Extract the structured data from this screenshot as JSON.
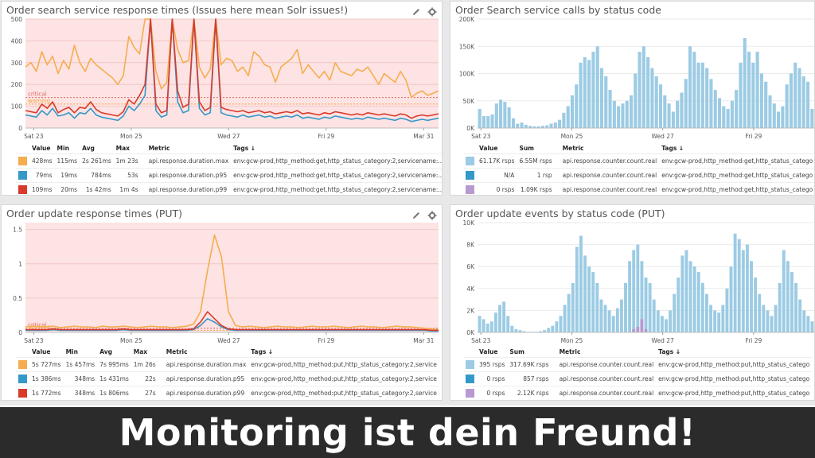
{
  "panels": [
    {
      "id": "p1",
      "title": "Order search service response times (Issues here mean Solr issues!)",
      "legend_headers": [
        "Value",
        "Min",
        "Avg",
        "Max",
        "Metric",
        "Tags ↓"
      ],
      "rows": [
        {
          "color": "#f5ad4f",
          "value": "428ms",
          "min": "115ms",
          "avg": "2s 261ms",
          "max": "1m 23s",
          "metric": "api.response.duration.max",
          "tags": "env:gcw-prod,http_method:get,http_status_category:2,servicename:..."
        },
        {
          "color": "#3498c8",
          "value": "79ms",
          "min": "19ms",
          "avg": "784ms",
          "max": "53s",
          "metric": "api.response.duration.p95",
          "tags": "env:gcw-prod,http_method:get,http_status_category:2,servicename:..."
        },
        {
          "color": "#d83a2c",
          "value": "109ms",
          "min": "20ms",
          "avg": "1s 42ms",
          "max": "1m 4s",
          "metric": "api.response.duration.p99",
          "tags": "env:gcw-prod,http_method:get,http_status_category:2,servicename:..."
        }
      ]
    },
    {
      "id": "p2",
      "title": "Order Search service calls by status code",
      "legend_headers": [
        "Value",
        "Sum",
        "Metric",
        "Tags ↓"
      ],
      "rows": [
        {
          "color": "#9ccbe4",
          "value": "61.17K rsps",
          "sum": "6.55M rsps",
          "metric": "api.response.counter.count.real",
          "tags": "env:gcw-prod,http_method:get,http_status_category:2,servicename:se"
        },
        {
          "color": "#3498c8",
          "value": "N/A",
          "sum": "1 rsp",
          "metric": "api.response.counter.count.real",
          "tags": "env:gcw-prod,http_method:get,http_status_category:4,servicename:se"
        },
        {
          "color": "#b79ad0",
          "value": "0 rsps",
          "sum": "1.09K rsps",
          "metric": "api.response.counter.count.real",
          "tags": "env:gcw-prod,http_method:get,http_status_category:5,servicename:se"
        }
      ]
    },
    {
      "id": "p3",
      "title": "Order update response times (PUT)",
      "legend_headers": [
        "Value",
        "Min",
        "Avg",
        "Max",
        "Metric",
        "Tags ↓"
      ],
      "rows": [
        {
          "color": "#f5ad4f",
          "value": "5s 727ms",
          "min": "1s 457ms",
          "avg": "7s 995ms",
          "max": "1m 26s",
          "metric": "api.response.duration.max",
          "tags": "env:gcw-prod,http_method:put,http_status_category:2,servicen..."
        },
        {
          "color": "#3498c8",
          "value": "1s 386ms",
          "min": "348ms",
          "avg": "1s 431ms",
          "max": "22s",
          "metric": "api.response.duration.p95",
          "tags": "env:gcw-prod,http_method:put,http_status_category:2,servicen..."
        },
        {
          "color": "#d83a2c",
          "value": "1s 772ms",
          "min": "348ms",
          "avg": "1s 806ms",
          "max": "27s",
          "metric": "api.response.duration.p99",
          "tags": "env:gcw-prod,http_method:put,http_status_category:2,servicen..."
        }
      ]
    },
    {
      "id": "p4",
      "title": "Order update events by status code (PUT)",
      "legend_headers": [
        "Value",
        "Sum",
        "Metric",
        "Tags ↓"
      ],
      "rows": [
        {
          "color": "#9ccbe4",
          "value": "395 rsps",
          "sum": "317.69K rsps",
          "metric": "api.response.counter.count.real",
          "tags": "env:gcw-prod,http_method:put,http_status_category:2,servicename:"
        },
        {
          "color": "#3498c8",
          "value": "0 rsps",
          "sum": "857 rsps",
          "metric": "api.response.counter.count.real",
          "tags": "env:gcw-prod,http_method:put,http_status_category:4,servicename:"
        },
        {
          "color": "#b79ad0",
          "value": "0 rsps",
          "sum": "2.12K rsps",
          "metric": "api.response.counter.count.real",
          "tags": "env:gcw-prod,http_method:put,http_status_category:5,servicename:"
        }
      ]
    }
  ],
  "icons": {
    "edit": "pencil-icon",
    "settings": "gear-icon"
  },
  "footer": {
    "text": "Monitoring ist dein Freund!"
  },
  "chart_data": [
    {
      "type": "line",
      "panel": "p1",
      "x_ticks": [
        "Sat 23",
        "Mon 25",
        "Wed 27",
        "Fri 29",
        "Mar 31"
      ],
      "y_ticks": [
        0,
        100,
        200,
        300,
        400,
        500
      ],
      "ylim": [
        0,
        500
      ],
      "thresholds": [
        {
          "label": "critical",
          "value": 140,
          "color": "#e06666"
        },
        {
          "label": "warning",
          "value": 110,
          "color": "#f5a742"
        }
      ],
      "series": [
        {
          "color": "#f5ad4f",
          "values": [
            280,
            300,
            260,
            350,
            290,
            330,
            250,
            310,
            270,
            380,
            300,
            260,
            320,
            290,
            270,
            250,
            230,
            200,
            240,
            420,
            370,
            340,
            500,
            500,
            260,
            180,
            210,
            500,
            360,
            300,
            310,
            500,
            280,
            230,
            270,
            500,
            290,
            320,
            310,
            260,
            280,
            240,
            350,
            330,
            290,
            280,
            210,
            280,
            300,
            320,
            360,
            250,
            290,
            260,
            230,
            260,
            220,
            300,
            260,
            250,
            240,
            270,
            260,
            280,
            240,
            200,
            250,
            230,
            210,
            260,
            220,
            140,
            160,
            170,
            150,
            160,
            170
          ]
        },
        {
          "color": "#3498c8",
          "values": [
            60,
            55,
            50,
            80,
            60,
            90,
            55,
            60,
            70,
            45,
            70,
            65,
            90,
            60,
            50,
            45,
            40,
            35,
            55,
            100,
            80,
            110,
            150,
            500,
            80,
            50,
            60,
            500,
            120,
            70,
            80,
            500,
            90,
            60,
            70,
            500,
            70,
            60,
            55,
            50,
            60,
            50,
            55,
            60,
            50,
            55,
            45,
            50,
            55,
            50,
            60,
            45,
            50,
            45,
            40,
            50,
            45,
            55,
            50,
            45,
            40,
            45,
            40,
            50,
            45,
            40,
            45,
            40,
            35,
            45,
            40,
            30,
            35,
            40,
            35,
            40,
            45
          ]
        },
        {
          "color": "#d83a2c",
          "values": [
            80,
            75,
            70,
            110,
            90,
            120,
            70,
            85,
            95,
            70,
            95,
            90,
            120,
            85,
            70,
            65,
            60,
            55,
            75,
            130,
            110,
            150,
            200,
            500,
            110,
            70,
            80,
            500,
            170,
            95,
            110,
            500,
            120,
            80,
            95,
            500,
            95,
            85,
            80,
            75,
            80,
            70,
            75,
            80,
            70,
            75,
            65,
            70,
            75,
            70,
            80,
            65,
            70,
            65,
            60,
            70,
            65,
            75,
            70,
            65,
            60,
            65,
            60,
            70,
            65,
            60,
            65,
            60,
            55,
            65,
            60,
            45,
            55,
            60,
            55,
            60,
            65
          ]
        }
      ]
    },
    {
      "type": "bar",
      "panel": "p2",
      "x_ticks": [
        "Sat 23",
        "Mon 25",
        "Wed 27",
        "Fri 29"
      ],
      "y_ticks": [
        "0K",
        "50K",
        "100K",
        "150K",
        "200K"
      ],
      "ylim": [
        0,
        200
      ],
      "unit": "K",
      "series": [
        {
          "color": "#9ccbe4",
          "values": [
            35,
            22,
            22,
            25,
            45,
            52,
            48,
            38,
            18,
            8,
            10,
            6,
            4,
            3,
            3,
            4,
            5,
            8,
            10,
            15,
            28,
            40,
            60,
            80,
            120,
            130,
            125,
            140,
            150,
            110,
            95,
            70,
            50,
            40,
            45,
            50,
            60,
            100,
            140,
            150,
            130,
            110,
            95,
            80,
            60,
            45,
            30,
            50,
            65,
            90,
            150,
            140,
            120,
            120,
            110,
            90,
            70,
            55,
            40,
            35,
            50,
            70,
            120,
            165,
            140,
            120,
            140,
            100,
            85,
            60,
            45,
            30,
            40,
            80,
            100,
            120,
            110,
            95,
            85,
            35
          ]
        },
        {
          "color": "#b79ad0",
          "values": []
        }
      ]
    },
    {
      "type": "line",
      "panel": "p3",
      "x_ticks": [
        "Sat 23",
        "Mon 25",
        "Wed 27",
        "Fri 29",
        "Mar 31"
      ],
      "y_ticks": [
        0,
        0.5,
        1,
        1.5
      ],
      "ylim": [
        0,
        1.6
      ],
      "thresholds": [
        {
          "label": "critical",
          "value": 0.06,
          "color": "#e06666"
        },
        {
          "label": "warning",
          "value": 0.03,
          "color": "#f5a742"
        }
      ],
      "series": [
        {
          "color": "#f5ad4f",
          "values": [
            0.08,
            0.09,
            0.08,
            0.08,
            0.09,
            0.07,
            0.08,
            0.09,
            0.08,
            0.08,
            0.07,
            0.09,
            0.08,
            0.08,
            0.09,
            0.08,
            0.07,
            0.08,
            0.09,
            0.08,
            0.08,
            0.07,
            0.08,
            0.09,
            0.12,
            0.3,
            0.9,
            1.42,
            1.1,
            0.3,
            0.1,
            0.08,
            0.09,
            0.08,
            0.07,
            0.08,
            0.09,
            0.08,
            0.08,
            0.07,
            0.08,
            0.09,
            0.08,
            0.08,
            0.09,
            0.08,
            0.07,
            0.08,
            0.09,
            0.08,
            0.08,
            0.07,
            0.08,
            0.09,
            0.08,
            0.08,
            0.07,
            0.06,
            0.05,
            0.04
          ]
        },
        {
          "color": "#3498c8",
          "values": [
            0.03,
            0.03,
            0.03,
            0.03,
            0.04,
            0.03,
            0.03,
            0.03,
            0.03,
            0.03,
            0.03,
            0.03,
            0.03,
            0.03,
            0.04,
            0.03,
            0.03,
            0.03,
            0.03,
            0.03,
            0.03,
            0.03,
            0.03,
            0.03,
            0.04,
            0.1,
            0.2,
            0.15,
            0.08,
            0.04,
            0.03,
            0.03,
            0.03,
            0.03,
            0.03,
            0.03,
            0.03,
            0.03,
            0.03,
            0.03,
            0.03,
            0.03,
            0.03,
            0.03,
            0.03,
            0.03,
            0.03,
            0.03,
            0.03,
            0.03,
            0.03,
            0.03,
            0.03,
            0.03,
            0.03,
            0.03,
            0.03,
            0.03,
            0.02,
            0.02
          ]
        },
        {
          "color": "#d83a2c",
          "values": [
            0.04,
            0.04,
            0.04,
            0.04,
            0.05,
            0.04,
            0.04,
            0.04,
            0.04,
            0.04,
            0.04,
            0.04,
            0.04,
            0.04,
            0.05,
            0.04,
            0.04,
            0.04,
            0.04,
            0.04,
            0.04,
            0.04,
            0.04,
            0.04,
            0.05,
            0.15,
            0.3,
            0.2,
            0.1,
            0.05,
            0.04,
            0.04,
            0.04,
            0.04,
            0.04,
            0.04,
            0.04,
            0.04,
            0.04,
            0.04,
            0.04,
            0.04,
            0.04,
            0.04,
            0.04,
            0.04,
            0.04,
            0.04,
            0.04,
            0.04,
            0.04,
            0.04,
            0.04,
            0.04,
            0.04,
            0.04,
            0.04,
            0.04,
            0.03,
            0.03
          ]
        }
      ]
    },
    {
      "type": "bar",
      "panel": "p4",
      "x_ticks": [
        "Sat 23",
        "Mon 25",
        "Wed 27",
        "Fri 29"
      ],
      "y_ticks": [
        "0K",
        "2K",
        "4K",
        "6K",
        "8K",
        "10K"
      ],
      "ylim": [
        0,
        10
      ],
      "unit": "K",
      "series": [
        {
          "color": "#9ccbe4",
          "values": [
            1.5,
            1.2,
            0.8,
            1.0,
            1.8,
            2.5,
            2.8,
            1.5,
            0.6,
            0.3,
            0.2,
            0.1,
            0.05,
            0.05,
            0.05,
            0.1,
            0.2,
            0.4,
            0.6,
            1.0,
            1.5,
            2.5,
            3.5,
            4.5,
            7.8,
            8.8,
            7.0,
            6.0,
            5.5,
            4.5,
            3.0,
            2.5,
            2.0,
            1.5,
            2.2,
            3.0,
            4.5,
            6.5,
            7.5,
            8.0,
            6.5,
            5.0,
            4.5,
            3.0,
            2.0,
            1.5,
            1.2,
            2.0,
            3.5,
            5.0,
            7.0,
            7.5,
            6.5,
            6.0,
            5.5,
            4.5,
            3.5,
            2.5,
            2.0,
            1.8,
            2.5,
            4.0,
            6.0,
            9.0,
            8.5,
            7.5,
            8.0,
            6.5,
            5.0,
            3.5,
            2.5,
            2.0,
            1.5,
            2.5,
            4.5,
            7.5,
            6.5,
            5.5,
            4.5,
            3.0,
            2.0,
            1.5,
            1.0
          ]
        },
        {
          "color": "#b79ad0",
          "values": [
            0,
            0,
            0,
            0,
            0,
            0,
            0,
            0,
            0,
            0,
            0,
            0,
            0,
            0,
            0,
            0,
            0,
            0,
            0,
            0,
            0,
            0,
            0,
            0,
            0,
            0,
            0,
            0,
            0,
            0,
            0,
            0,
            0,
            0,
            0,
            0,
            0,
            0,
            0.3,
            0.5,
            1.2,
            0.3,
            0,
            0,
            0,
            0,
            0,
            0,
            0,
            0,
            0,
            0,
            0,
            0,
            0,
            0,
            0,
            0,
            0,
            0,
            0,
            0,
            0,
            0,
            0,
            0,
            0,
            0,
            0,
            0,
            0,
            0,
            0,
            0,
            0,
            0,
            0,
            0,
            0,
            0,
            0,
            0,
            0
          ]
        }
      ]
    }
  ]
}
